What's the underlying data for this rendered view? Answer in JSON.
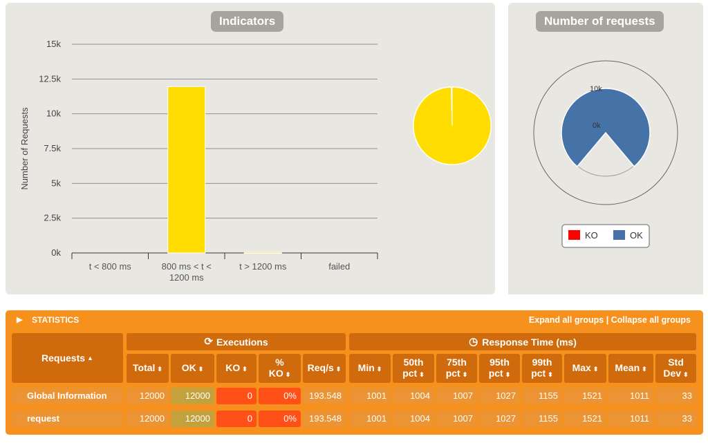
{
  "indicators": {
    "title": "Indicators",
    "chart_data": {
      "type": "bar",
      "ylabel": "Number of Requests",
      "ylim": [
        0,
        15000
      ],
      "yticks": [
        "0k",
        "2.5k",
        "5k",
        "7.5k",
        "10k",
        "12.5k",
        "15k"
      ],
      "ytick_values": [
        0,
        2500,
        5000,
        7500,
        10000,
        12500,
        15000
      ],
      "categories": [
        "t < 800 ms",
        "800 ms < t < 1200 ms",
        "t > 1200 ms",
        "failed"
      ],
      "category_lines": [
        [
          "t < 800 ms"
        ],
        [
          "800 ms < t <",
          "1200 ms"
        ],
        [
          "t > 1200 ms"
        ],
        [
          "failed"
        ]
      ],
      "values": [
        0,
        11950,
        50,
        0
      ],
      "bar_color": "#ffdd00",
      "pie": {
        "values": [
          11950,
          50,
          0
        ],
        "colors": [
          "#ffdd00",
          "#e5e5d0",
          "#ff0000"
        ]
      }
    }
  },
  "requests_chart": {
    "title": "Number of requests",
    "chart_data": {
      "type": "pie",
      "ticks": [
        "10k",
        "0k"
      ],
      "series": [
        {
          "name": "KO",
          "value": 0,
          "color": "#ff0000"
        },
        {
          "name": "OK",
          "value": 12000,
          "color": "#4572a7"
        }
      ]
    }
  },
  "statistics": {
    "title": "STATISTICS",
    "expand_all": "Expand all groups",
    "separator": "|",
    "collapse_all": "Collapse all groups",
    "requests_header": "Requests",
    "executions_header": "Executions",
    "response_time_header": "Response Time (ms)",
    "columns": [
      {
        "l1": "Total",
        "l2": ""
      },
      {
        "l1": "OK",
        "l2": ""
      },
      {
        "l1": "KO",
        "l2": ""
      },
      {
        "l1": "%",
        "l2": "KO"
      },
      {
        "l1": "Req/s",
        "l2": ""
      },
      {
        "l1": "Min",
        "l2": ""
      },
      {
        "l1": "50th",
        "l2": "pct"
      },
      {
        "l1": "75th",
        "l2": "pct"
      },
      {
        "l1": "95th",
        "l2": "pct"
      },
      {
        "l1": "99th",
        "l2": "pct"
      },
      {
        "l1": "Max",
        "l2": ""
      },
      {
        "l1": "Mean",
        "l2": ""
      },
      {
        "l1": "Std",
        "l2": "Dev"
      }
    ],
    "rows": [
      {
        "name": "Global Information",
        "values": [
          "12000",
          "12000",
          "0",
          "0%",
          "193.548",
          "1001",
          "1004",
          "1007",
          "1027",
          "1155",
          "1521",
          "1011",
          "33"
        ]
      },
      {
        "name": "request",
        "values": [
          "12000",
          "12000",
          "0",
          "0%",
          "193.548",
          "1001",
          "1004",
          "1007",
          "1027",
          "1155",
          "1521",
          "1011",
          "33"
        ]
      }
    ]
  }
}
